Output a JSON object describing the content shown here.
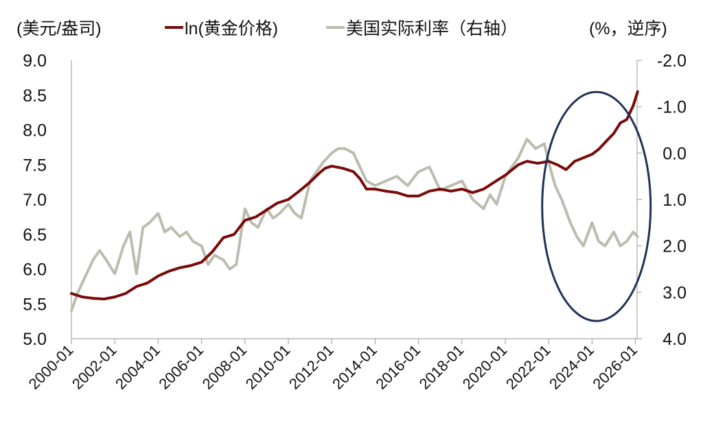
{
  "chart_data": {
    "type": "line",
    "title": "",
    "left_axis": {
      "unit_label": "(美元/盎司)",
      "range": [
        5.0,
        9.0
      ],
      "ticks": [
        "5.0",
        "5.5",
        "6.0",
        "6.5",
        "7.0",
        "7.5",
        "8.0",
        "8.5",
        "9.0"
      ]
    },
    "right_axis": {
      "unit_label": "(%，逆序)",
      "range": [
        4.0,
        -2.0
      ],
      "reversed": true,
      "ticks": [
        "-2.0",
        "-1.0",
        "0.0",
        "1.0",
        "2.0",
        "3.0",
        "4.0"
      ]
    },
    "x_axis": {
      "ticks": [
        "2000-01",
        "2002-01",
        "2004-01",
        "2006-01",
        "2008-01",
        "2010-01",
        "2012-01",
        "2014-01",
        "2016-01",
        "2018-01",
        "2020-01",
        "2022-01",
        "2024-01",
        "2026-01"
      ]
    },
    "legend_position": "top",
    "grid": false,
    "series": [
      {
        "name": "ln(黄金价格)",
        "axis": "left",
        "color": "#7a0a0a",
        "x": [
          2000.0,
          2000.5,
          2001.0,
          2001.5,
          2002.0,
          2002.5,
          2003.0,
          2003.5,
          2004.0,
          2004.5,
          2005.0,
          2005.5,
          2006.0,
          2006.5,
          2007.0,
          2007.5,
          2008.0,
          2008.5,
          2009.0,
          2009.5,
          2010.0,
          2010.5,
          2011.0,
          2011.5,
          2011.7,
          2012.0,
          2012.5,
          2013.0,
          2013.3,
          2013.6,
          2014.0,
          2014.5,
          2015.0,
          2015.5,
          2016.0,
          2016.5,
          2017.0,
          2017.5,
          2018.0,
          2018.5,
          2019.0,
          2019.5,
          2020.0,
          2020.6,
          2021.0,
          2021.5,
          2022.0,
          2022.4,
          2022.8,
          2023.2,
          2023.6,
          2024.0,
          2024.3,
          2024.6,
          2025.0,
          2025.3,
          2025.6,
          2025.9,
          2026.1
        ],
        "values": [
          5.65,
          5.6,
          5.58,
          5.57,
          5.6,
          5.65,
          5.75,
          5.8,
          5.9,
          5.97,
          6.02,
          6.05,
          6.1,
          6.25,
          6.45,
          6.5,
          6.7,
          6.75,
          6.85,
          6.95,
          7.0,
          7.12,
          7.25,
          7.4,
          7.45,
          7.48,
          7.45,
          7.4,
          7.3,
          7.15,
          7.15,
          7.12,
          7.1,
          7.05,
          7.05,
          7.12,
          7.15,
          7.12,
          7.15,
          7.1,
          7.15,
          7.25,
          7.35,
          7.5,
          7.55,
          7.52,
          7.55,
          7.5,
          7.43,
          7.55,
          7.6,
          7.65,
          7.72,
          7.82,
          7.95,
          8.1,
          8.15,
          8.35,
          8.55
        ]
      },
      {
        "name": "美国实际利率（右轴）",
        "axis": "right",
        "color": "#bcbcae",
        "x": [
          2000.0,
          2000.3,
          2000.6,
          2001.0,
          2001.3,
          2001.6,
          2002.0,
          2002.4,
          2002.7,
          2003.0,
          2003.3,
          2003.6,
          2004.0,
          2004.3,
          2004.6,
          2005.0,
          2005.3,
          2005.6,
          2006.0,
          2006.3,
          2006.6,
          2007.0,
          2007.3,
          2007.6,
          2008.0,
          2008.3,
          2008.6,
          2009.0,
          2009.3,
          2009.6,
          2010.0,
          2010.3,
          2010.6,
          2011.0,
          2011.3,
          2011.6,
          2012.0,
          2012.3,
          2012.6,
          2013.0,
          2013.3,
          2013.6,
          2014.0,
          2014.5,
          2015.0,
          2015.5,
          2016.0,
          2016.5,
          2017.0,
          2017.5,
          2018.0,
          2018.5,
          2019.0,
          2019.3,
          2019.6,
          2020.0,
          2020.3,
          2020.6,
          2021.0,
          2021.4,
          2021.8,
          2022.0,
          2022.3,
          2022.6,
          2023.0,
          2023.3,
          2023.6,
          2024.0,
          2024.3,
          2024.6,
          2025.0,
          2025.3,
          2025.6,
          2025.9,
          2026.1
        ],
        "values": [
          3.4,
          3.0,
          2.7,
          2.3,
          2.1,
          2.3,
          2.6,
          2.0,
          1.7,
          2.6,
          1.6,
          1.5,
          1.3,
          1.7,
          1.6,
          1.8,
          1.7,
          1.9,
          2.0,
          2.4,
          2.2,
          2.3,
          2.5,
          2.4,
          1.2,
          1.5,
          1.6,
          1.2,
          1.4,
          1.3,
          1.1,
          1.3,
          1.4,
          0.6,
          0.4,
          0.2,
          0.0,
          -0.1,
          -0.1,
          0.0,
          0.3,
          0.6,
          0.7,
          0.6,
          0.5,
          0.7,
          0.4,
          0.3,
          0.8,
          0.7,
          0.6,
          1.0,
          1.2,
          0.9,
          1.1,
          0.5,
          0.3,
          0.1,
          -0.3,
          -0.1,
          -0.2,
          0.2,
          0.7,
          1.0,
          1.5,
          1.8,
          2.0,
          1.5,
          1.9,
          2.0,
          1.7,
          2.0,
          1.9,
          1.7,
          1.8
        ]
      }
    ],
    "annotations": [
      {
        "type": "ellipse",
        "color": "#1f3156",
        "center_year": 2024.2,
        "center_left_value": 6.9,
        "description": "highlighting 2022-2026 divergence"
      }
    ]
  },
  "header": {
    "left_unit": "(美元/盎司)",
    "right_unit": "(%，逆序)",
    "legend": [
      {
        "label": "ln(黄金价格)",
        "color": "#7a0a0a"
      },
      {
        "label": "美国实际利率（右轴）",
        "color": "#bcbcae"
      }
    ]
  }
}
